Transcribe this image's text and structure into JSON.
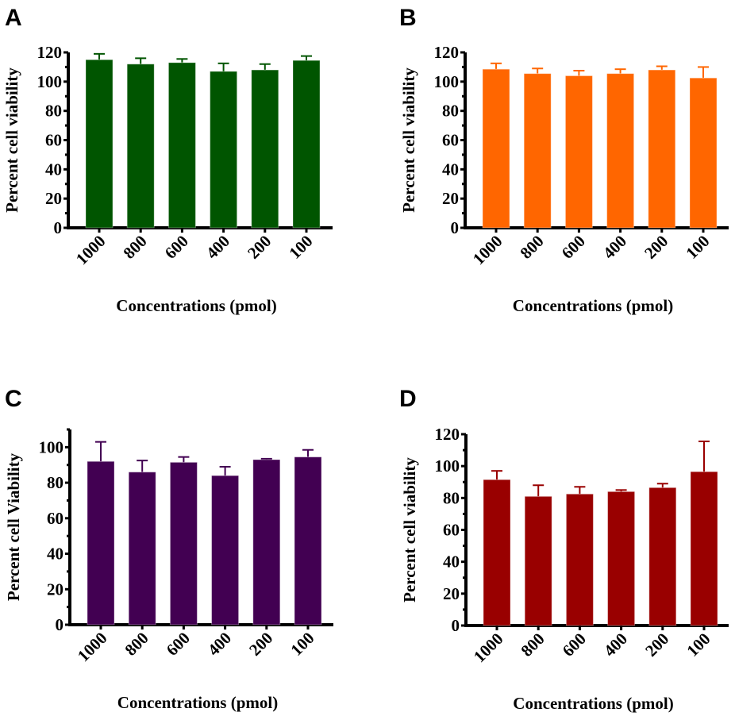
{
  "chart_data": [
    {
      "panel": "A",
      "type": "bar",
      "categories": [
        "1000",
        "800",
        "600",
        "400",
        "200",
        "100"
      ],
      "values": [
        115,
        112,
        113,
        107,
        108,
        114.5
      ],
      "errors": [
        4,
        4,
        2.5,
        5.5,
        4,
        3
      ],
      "xlabel": "Concentrations (pmol)",
      "ylabel": "Percent  cell viability",
      "ylim": [
        0,
        120
      ],
      "yticks": [
        0,
        20,
        40,
        60,
        80,
        100,
        120
      ],
      "color": "#005500",
      "grid": false
    },
    {
      "panel": "B",
      "type": "bar",
      "categories": [
        "1000",
        "800",
        "600",
        "400",
        "200",
        "100"
      ],
      "values": [
        108.5,
        105.5,
        104,
        105.5,
        108,
        102.5
      ],
      "errors": [
        4,
        3.5,
        3.5,
        3,
        2.5,
        7.5
      ],
      "xlabel": "Concentrations (pmol)",
      "ylabel": "Percent  cell viability",
      "ylim": [
        0,
        120
      ],
      "yticks": [
        0,
        20,
        40,
        60,
        80,
        100,
        120
      ],
      "color": "#ff6600",
      "grid": false
    },
    {
      "panel": "C",
      "type": "bar",
      "categories": [
        "1000",
        "800",
        "600",
        "400",
        "200",
        "100"
      ],
      "values": [
        92,
        86,
        91.5,
        84,
        93,
        94.5
      ],
      "errors": [
        11,
        6.5,
        3,
        5,
        0.5,
        4
      ],
      "xlabel": "Concentrations (pmol)",
      "ylabel": "Percent cell Viability",
      "ylim": [
        0,
        110
      ],
      "yticks": [
        0,
        20,
        40,
        60,
        80,
        100
      ],
      "color": "#420052",
      "grid": false
    },
    {
      "panel": "D",
      "type": "bar",
      "categories": [
        "1000",
        "800",
        "600",
        "400",
        "200",
        "100"
      ],
      "values": [
        91.5,
        81,
        82.5,
        84,
        86.5,
        96.5
      ],
      "errors": [
        5.5,
        7,
        4.5,
        1,
        2.5,
        19
      ],
      "xlabel": "Concentrations (pmol)",
      "ylabel": "Percent  cell viability",
      "ylim": [
        0,
        120
      ],
      "yticks": [
        0,
        20,
        40,
        60,
        80,
        100,
        120
      ],
      "color": "#990000",
      "grid": false
    }
  ]
}
